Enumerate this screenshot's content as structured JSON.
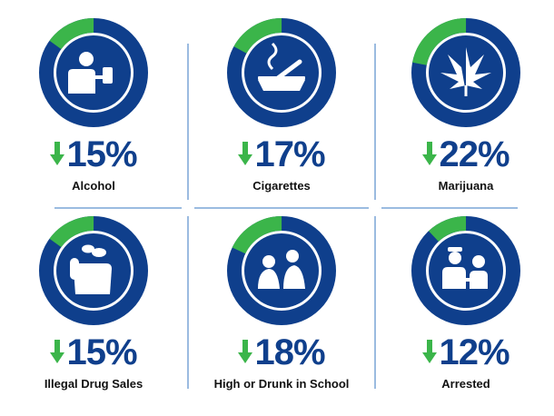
{
  "colors": {
    "ring": "#0f3f8c",
    "highlight": "#3bb54a",
    "icon": "#0f3f8c",
    "arrow": "#3bb54a",
    "divider": "#9bbbe0"
  },
  "chart_data": [
    {
      "type": "pie",
      "category": "Alcohol",
      "value": 15,
      "display": "15%",
      "direction": "down",
      "icon": "person-drinking-icon"
    },
    {
      "type": "pie",
      "category": "Cigarettes",
      "value": 17,
      "display": "17%",
      "direction": "down",
      "icon": "cigarette-ashtray-icon"
    },
    {
      "type": "pie",
      "category": "Marijuana",
      "value": 22,
      "display": "22%",
      "direction": "down",
      "icon": "cannabis-leaf-icon"
    },
    {
      "type": "pie",
      "category": "Illegal Drug Sales",
      "value": 15,
      "display": "15%",
      "direction": "down",
      "icon": "hand-pills-icon"
    },
    {
      "type": "pie",
      "category": "High or Drunk in School",
      "value": 18,
      "display": "18%",
      "direction": "down",
      "icon": "sick-students-icon"
    },
    {
      "type": "pie",
      "category": "Arrested",
      "value": 12,
      "display": "12%",
      "direction": "down",
      "icon": "arrest-icon"
    }
  ]
}
